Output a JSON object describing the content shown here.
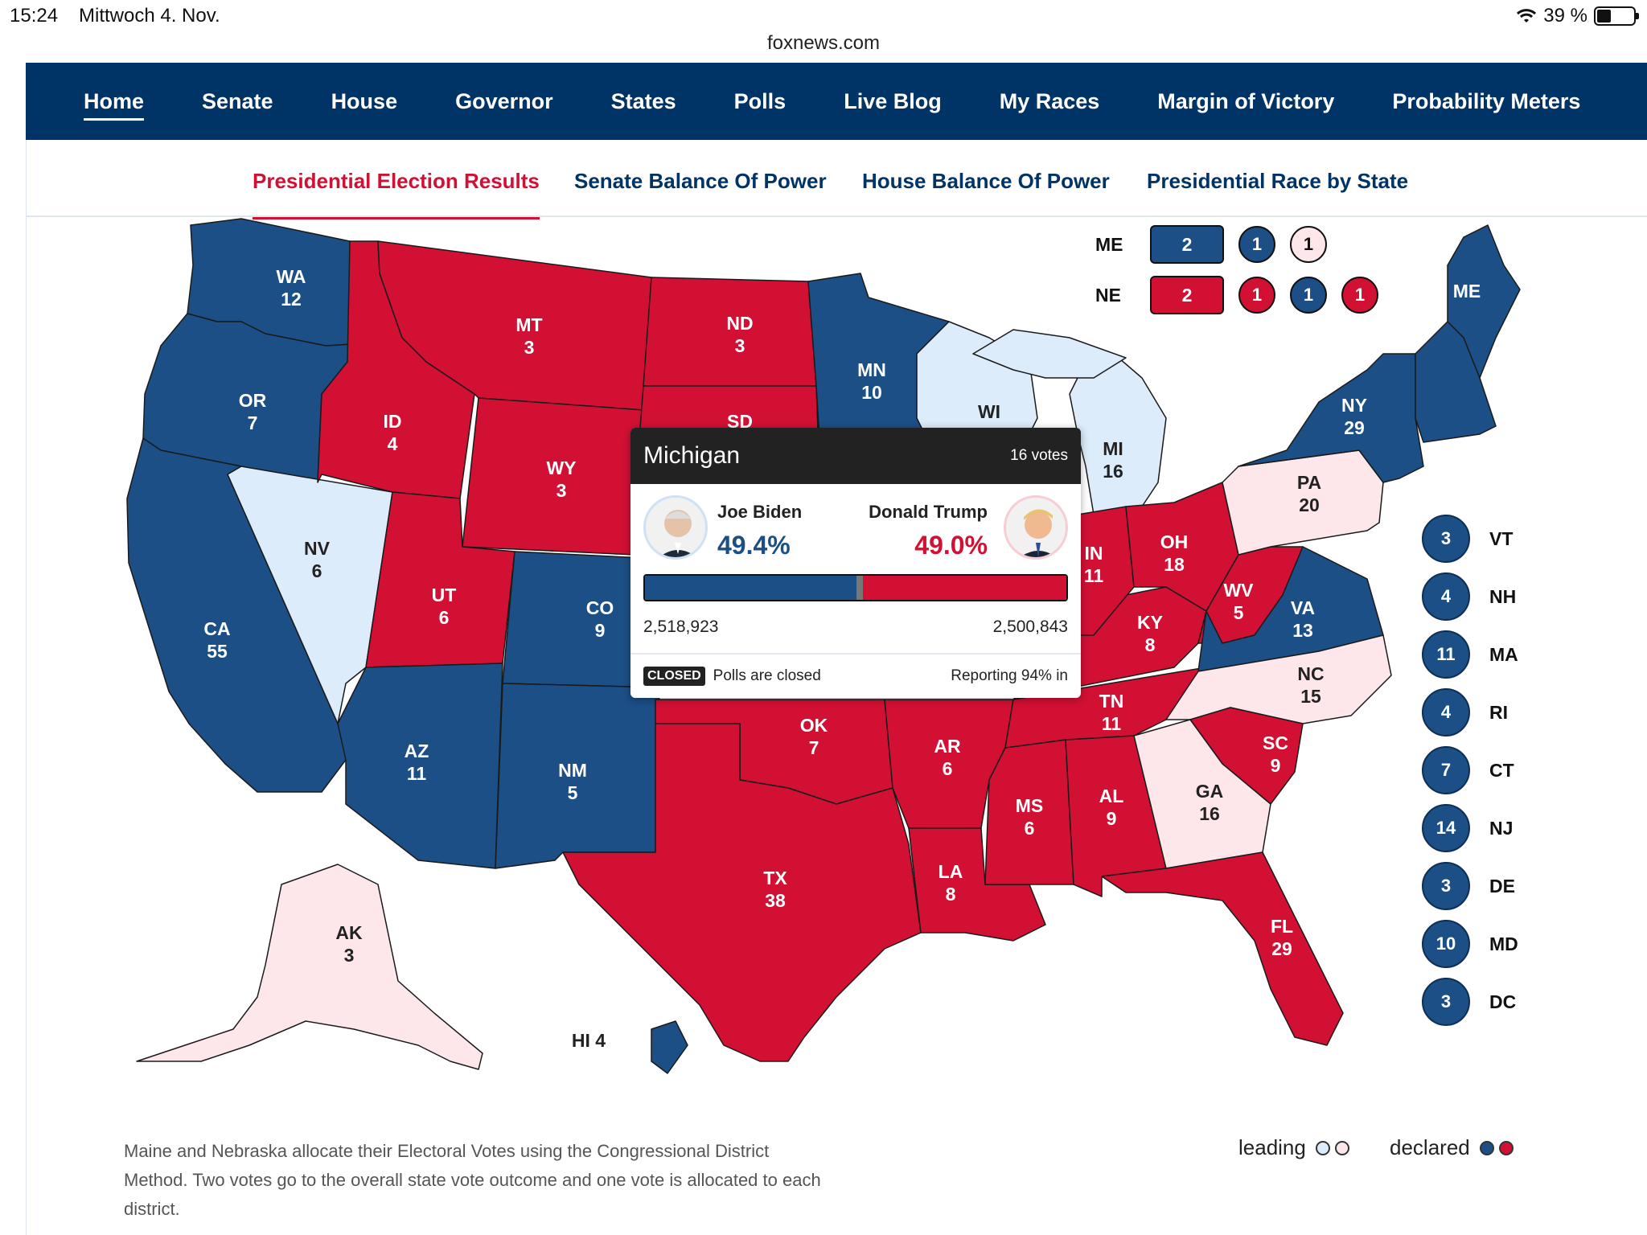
{
  "status_bar": {
    "time": "15:24",
    "date": "Mittwoch 4. Nov.",
    "url": "foxnews.com",
    "battery": "39 %"
  },
  "nav": {
    "items": [
      "Home",
      "Senate",
      "House",
      "Governor",
      "States",
      "Polls",
      "Live Blog",
      "My Races",
      "Margin of Victory",
      "Probability Meters"
    ],
    "active": "Home"
  },
  "subtabs": {
    "items": [
      "Presidential Election Results",
      "Senate Balance Of Power",
      "House Balance Of Power",
      "Presidential Race by State"
    ],
    "active": "Presidential Election Results"
  },
  "colors": {
    "dem_declared": "#1b4f86",
    "rep_declared": "#d21034",
    "dem_leading": "#dcecfa",
    "rep_leading": "#fde7ea",
    "nav_bg": "#003366"
  },
  "states": [
    {
      "code": "WA",
      "ev": "12",
      "status": "dem_declared"
    },
    {
      "code": "OR",
      "ev": "7",
      "status": "dem_declared"
    },
    {
      "code": "CA",
      "ev": "55",
      "status": "dem_declared"
    },
    {
      "code": "NV",
      "ev": "6",
      "status": "dem_leading"
    },
    {
      "code": "ID",
      "ev": "4",
      "status": "rep_declared"
    },
    {
      "code": "MT",
      "ev": "3",
      "status": "rep_declared"
    },
    {
      "code": "WY",
      "ev": "3",
      "status": "rep_declared"
    },
    {
      "code": "UT",
      "ev": "6",
      "status": "rep_declared"
    },
    {
      "code": "CO",
      "ev": "9",
      "status": "dem_declared"
    },
    {
      "code": "AZ",
      "ev": "11",
      "status": "dem_declared"
    },
    {
      "code": "NM",
      "ev": "5",
      "status": "dem_declared"
    },
    {
      "code": "ND",
      "ev": "3",
      "status": "rep_declared"
    },
    {
      "code": "SD",
      "ev": "",
      "status": "rep_declared"
    },
    {
      "code": "MN",
      "ev": "10",
      "status": "dem_declared"
    },
    {
      "code": "WI",
      "ev": "",
      "status": "dem_leading"
    },
    {
      "code": "MI",
      "ev": "16",
      "status": "dem_leading"
    },
    {
      "code": "OK",
      "ev": "7",
      "status": "rep_declared"
    },
    {
      "code": "TX",
      "ev": "38",
      "status": "rep_declared"
    },
    {
      "code": "AR",
      "ev": "6",
      "status": "rep_declared"
    },
    {
      "code": "LA",
      "ev": "8",
      "status": "rep_declared"
    },
    {
      "code": "MS",
      "ev": "6",
      "status": "rep_declared"
    },
    {
      "code": "AL",
      "ev": "9",
      "status": "rep_declared"
    },
    {
      "code": "TN",
      "ev": "11",
      "status": "rep_declared"
    },
    {
      "code": "KY",
      "ev": "8",
      "status": "rep_declared"
    },
    {
      "code": "IN",
      "ev": "11",
      "status": "rep_declared"
    },
    {
      "code": "OH",
      "ev": "18",
      "status": "rep_declared"
    },
    {
      "code": "WV",
      "ev": "5",
      "status": "rep_declared"
    },
    {
      "code": "VA",
      "ev": "13",
      "status": "dem_declared"
    },
    {
      "code": "NC",
      "ev": "15",
      "status": "rep_leading"
    },
    {
      "code": "SC",
      "ev": "9",
      "status": "rep_declared"
    },
    {
      "code": "GA",
      "ev": "16",
      "status": "rep_leading"
    },
    {
      "code": "FL",
      "ev": "29",
      "status": "rep_declared"
    },
    {
      "code": "PA",
      "ev": "20",
      "status": "rep_leading"
    },
    {
      "code": "NY",
      "ev": "29",
      "status": "dem_declared"
    },
    {
      "code": "ME",
      "ev": "",
      "status": "dem_declared"
    },
    {
      "code": "AK",
      "ev": "3",
      "status": "rep_leading"
    },
    {
      "code": "HI",
      "ev": "4",
      "status": "dem_declared"
    }
  ],
  "splits": {
    "ME": {
      "label": "ME",
      "state": "2",
      "districts": [
        "1",
        "1"
      ]
    },
    "NE": {
      "label": "NE",
      "state": "2",
      "districts": [
        "1",
        "1",
        "1"
      ]
    }
  },
  "small_states": [
    {
      "code": "VT",
      "ev": "3"
    },
    {
      "code": "NH",
      "ev": "4"
    },
    {
      "code": "MA",
      "ev": "11"
    },
    {
      "code": "RI",
      "ev": "4"
    },
    {
      "code": "CT",
      "ev": "7"
    },
    {
      "code": "NJ",
      "ev": "14"
    },
    {
      "code": "DE",
      "ev": "3"
    },
    {
      "code": "MD",
      "ev": "10"
    },
    {
      "code": "DC",
      "ev": "3"
    }
  ],
  "tooltip": {
    "state": "Michigan",
    "votes": "16 votes",
    "dem": {
      "name": "Joe Biden",
      "pct": "49.4%",
      "count": "2,518,923",
      "share": 0.494
    },
    "rep": {
      "name": "Donald Trump",
      "pct": "49.0%",
      "count": "2,500,843",
      "share": 0.49
    },
    "status_badge": "CLOSED",
    "status_text": "Polls are closed",
    "reporting": "Reporting 94% in"
  },
  "footer": {
    "note": "Maine and Nebraska allocate their Electoral Votes using the Congressional District Method. Two votes go to the overall state vote outcome and one vote is allocated to each district.",
    "legend_leading": "leading",
    "legend_declared": "declared"
  }
}
